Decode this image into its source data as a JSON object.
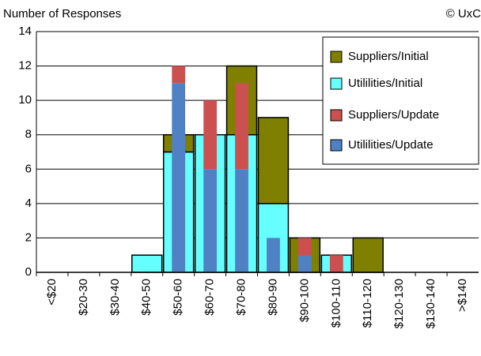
{
  "chart_data": {
    "type": "bar",
    "title": "Number of Responses",
    "annotation": "© UxC",
    "categories": [
      "<$20",
      "$20-30",
      "$30-40",
      "$40-50",
      "$50-60",
      "$60-70",
      "$70-80",
      "$80-90",
      "$90-100",
      "$100-110",
      "$110-120",
      "$120-130",
      "$130-140",
      ">$140"
    ],
    "series": [
      {
        "name": "Suppliers/Initial",
        "color": "#808000",
        "values": [
          0,
          0,
          0,
          0,
          1,
          0,
          4,
          5,
          2,
          0,
          2,
          0,
          0,
          0
        ]
      },
      {
        "name": "Utililities/Initial",
        "color": "#66ffff",
        "values": [
          0,
          0,
          0,
          1,
          7,
          8,
          8,
          4,
          0,
          1,
          0,
          0,
          0,
          0
        ]
      },
      {
        "name": "Suppliers/Update",
        "color": "#cc5050",
        "values": [
          0,
          0,
          0,
          0,
          1,
          4,
          5,
          0,
          1,
          1,
          0,
          0,
          0,
          0
        ]
      },
      {
        "name": "Utililities/Update",
        "color": "#4f81c4",
        "values": [
          0,
          0,
          0,
          0,
          11,
          6,
          6,
          2,
          1,
          0,
          0,
          0,
          0,
          0
        ]
      }
    ],
    "ylim": [
      0,
      14
    ],
    "yticks": [
      0,
      2,
      4,
      6,
      8,
      10,
      12,
      14
    ],
    "grid": true,
    "legend": "upper right"
  }
}
